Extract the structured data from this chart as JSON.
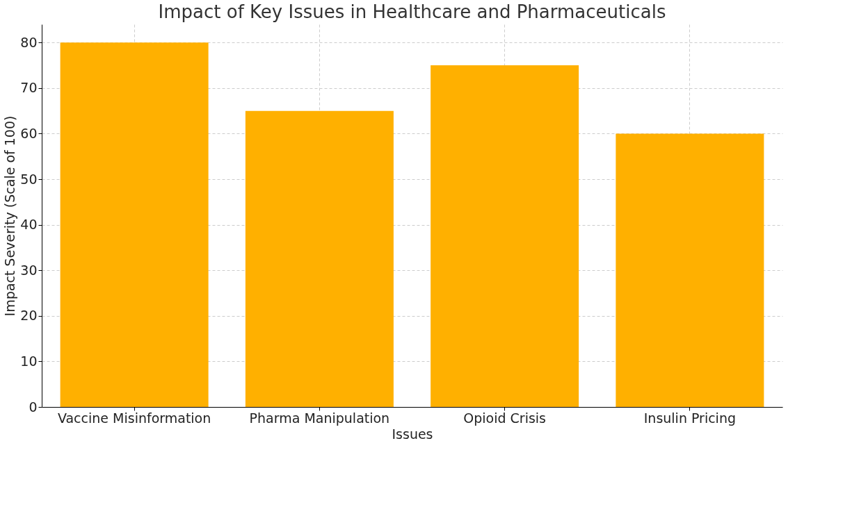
{
  "chart_data": {
    "type": "bar",
    "title": "Impact of Key Issues in Healthcare and Pharmaceuticals",
    "xlabel": "Issues",
    "ylabel": "Impact Severity (Scale of 100)",
    "categories": [
      "Vaccine Misinformation",
      "Pharma Manipulation",
      "Opioid Crisis",
      "Insulin Pricing"
    ],
    "values": [
      80,
      65,
      75,
      60
    ],
    "color": "#ffb000",
    "ylim": [
      0,
      84
    ],
    "yticks": [
      0,
      10,
      20,
      30,
      40,
      50,
      60,
      70,
      80
    ],
    "grid": true
  }
}
